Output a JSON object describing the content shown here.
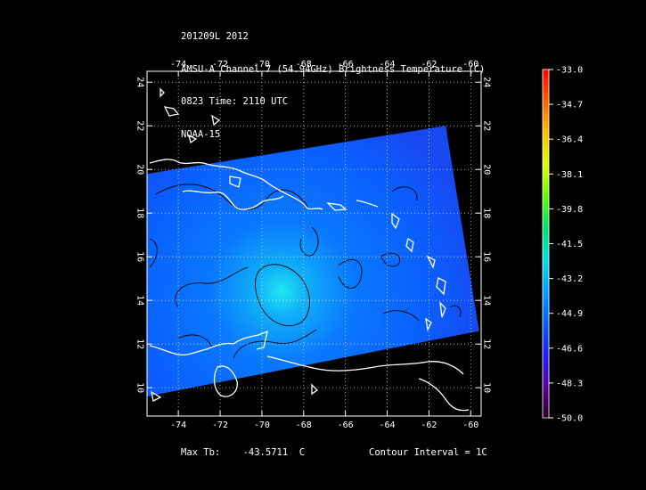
{
  "header": {
    "line1": "201209L 2012",
    "line2": "AMSU-A Channel 7 (54.94GHz) Brightness Temperature (C)",
    "line3": "0823 Time: 2110 UTC",
    "line4": "NOAA-15"
  },
  "footer": {
    "max_label": "Max Tb:",
    "max_value": "-43.5711",
    "max_unit": "C",
    "contour": "Contour Interval = 1C"
  },
  "chart_data": {
    "type": "heatmap",
    "xlim": [
      -75.5,
      -59.5
    ],
    "ylim": [
      8.7,
      24.5
    ],
    "x_ticks": [
      "-74",
      "-72",
      "-70",
      "-68",
      "-66",
      "-64",
      "-62",
      "-60"
    ],
    "y_ticks": [
      "10",
      "12",
      "14",
      "16",
      "18",
      "20",
      "22",
      "24"
    ],
    "grid": true,
    "colorbar": {
      "range": [
        -50.0,
        -33.0
      ],
      "ticks": [
        "-33.0",
        "-34.7",
        "-36.4",
        "-38.1",
        "-39.8",
        "-41.5",
        "-43.2",
        "-44.9",
        "-46.6",
        "-48.3",
        "-50.0"
      ],
      "colors": [
        "#2a0018",
        "#5a00a0",
        "#2020ff",
        "#0060ff",
        "#00a0ff",
        "#00e0e0",
        "#00e070",
        "#60ff00",
        "#e0ff00",
        "#ffc000",
        "#ff6000",
        "#ff0000"
      ]
    },
    "swath_corners": [
      [
        -75.5,
        19.8
      ],
      [
        -61.2,
        22.0
      ],
      [
        -59.6,
        12.6
      ],
      [
        -75.5,
        9.6
      ]
    ],
    "max_tb_location": [
      -69.5,
      14.3
    ]
  }
}
